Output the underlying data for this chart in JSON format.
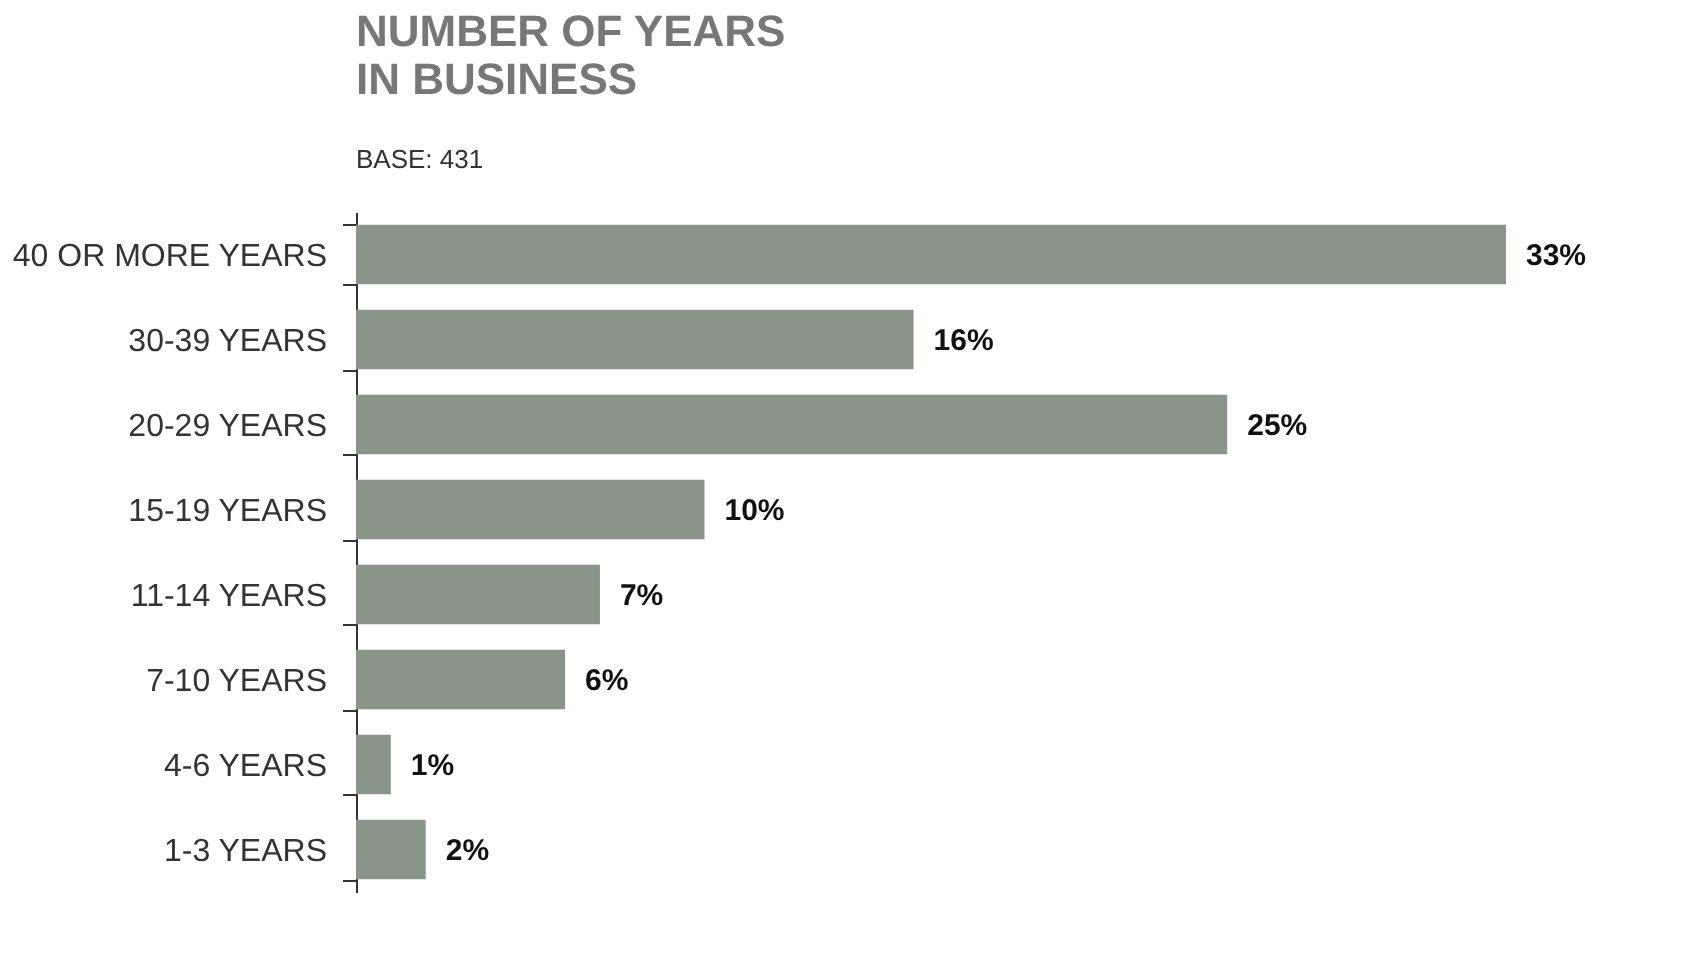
{
  "chart_data": {
    "type": "bar",
    "orientation": "horizontal",
    "title": [
      "NUMBER OF YEARS",
      "IN BUSINESS"
    ],
    "subtitle": "BASE: 431",
    "categories": [
      "40 OR MORE YEARS",
      "30-39 YEARS",
      "20-29 YEARS",
      "15-19 YEARS",
      "11-14 YEARS",
      "7-10 YEARS",
      "4-6 YEARS",
      "1-3 YEARS"
    ],
    "values": [
      33,
      16,
      25,
      10,
      7,
      6,
      1,
      2
    ],
    "value_labels": [
      "33%",
      "16%",
      "25%",
      "10%",
      "7%",
      "6%",
      "1%",
      "2%"
    ],
    "color": "#8a9589",
    "tick_labels": "y"
  }
}
